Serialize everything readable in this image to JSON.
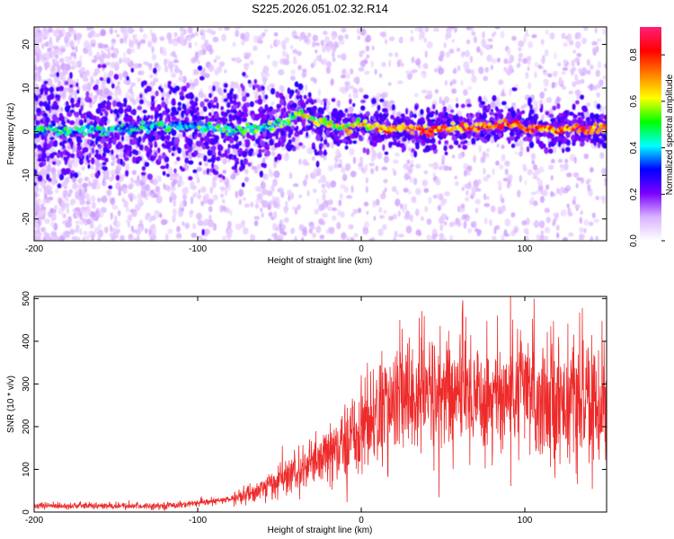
{
  "chart_data": [
    {
      "type": "heatmap",
      "title": "S225.2026.051.02.32.R14",
      "xlabel": "Height of straight line (km)",
      "ylabel": "Frequency (Hz)",
      "xlim": [
        -200,
        150
      ],
      "ylim": [
        -25,
        24
      ],
      "xticks": [
        -200,
        -100,
        0,
        100
      ],
      "yticks": [
        -20,
        -10,
        0,
        10,
        20
      ],
      "colorbar": {
        "label": "Normalized spectral amplitude",
        "range": [
          0,
          0.92
        ],
        "ticks": [
          "0.0",
          "0.2",
          "0.4",
          "0.6",
          "0.8"
        ],
        "colors": [
          "#ffffff",
          "#d9b3ff",
          "#7a00ff",
          "#0000ff",
          "#00ffff",
          "#00ff00",
          "#ffff00",
          "#ff8000",
          "#ff0000",
          "#ff1f7a"
        ]
      },
      "ridge": {
        "x": [
          -200,
          -150,
          -110,
          -100,
          -80,
          -60,
          -45,
          -38,
          -30,
          -20,
          -10,
          0,
          10,
          20,
          30,
          40,
          50,
          60,
          70,
          80,
          90,
          100,
          110,
          120,
          130,
          140,
          150
        ],
        "freq": [
          0.5,
          0.5,
          1.5,
          1.0,
          0.5,
          0.8,
          2.5,
          4.5,
          3.0,
          1.5,
          0.5,
          1.5,
          1.0,
          0.8,
          1.0,
          0.0,
          0.8,
          1.0,
          0.8,
          1.5,
          1.5,
          1.0,
          0.8,
          0.5,
          0.8,
          0.5,
          0.8
        ]
      }
    },
    {
      "type": "line",
      "title": "",
      "xlabel": "Height of straight line (km)",
      "ylabel": "SNR (10 * v/v)",
      "xlim": [
        -200,
        150
      ],
      "ylim": [
        0,
        505
      ],
      "xticks": [
        -200,
        -100,
        0,
        100
      ],
      "yticks": [
        0,
        100,
        200,
        300,
        400,
        500
      ],
      "series": [
        {
          "color": "#ee2a2a",
          "x": [
            -200,
            -180,
            -160,
            -140,
            -120,
            -100,
            -90,
            -80,
            -70,
            -60,
            -50,
            -40,
            -30,
            -20,
            -10,
            0,
            10,
            20,
            30,
            40,
            50,
            60,
            70,
            80,
            90,
            100,
            110,
            120,
            130,
            140,
            150
          ],
          "values": [
            15,
            15,
            14,
            14,
            15,
            20,
            25,
            30,
            40,
            55,
            75,
            90,
            110,
            130,
            160,
            200,
            230,
            255,
            270,
            275,
            275,
            278,
            280,
            270,
            275,
            280,
            275,
            270,
            255,
            250,
            245
          ]
        }
      ]
    }
  ]
}
